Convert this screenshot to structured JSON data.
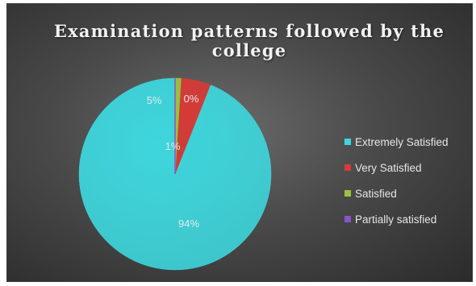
{
  "chart_data": {
    "type": "pie",
    "title_lines": [
      "Examination patterns followed by the",
      "college"
    ],
    "categories": [
      "Extremely Satisfied",
      "Very Satisfied",
      "Satisfied",
      "Partially satisfied"
    ],
    "values": [
      94,
      5,
      1,
      0
    ],
    "data_labels": [
      "94%",
      "5%",
      "1%",
      "0%"
    ],
    "colors": [
      "#3dd6dc",
      "#d63a36",
      "#9ac43c",
      "#8a55c8"
    ],
    "legend_position": "right",
    "background": "#3f3f3f"
  }
}
